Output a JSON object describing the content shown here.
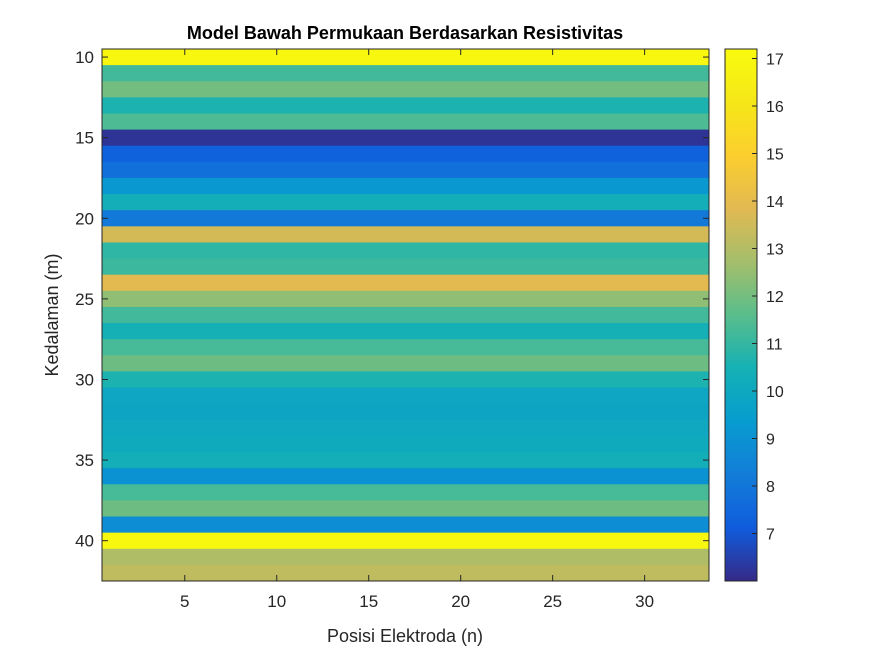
{
  "chart_data": {
    "type": "heatmap",
    "title": "Model Bawah Permukaan Berdasarkan Resistivitas",
    "xlabel": "Posisi Elektroda (n)",
    "ylabel": "Kedalaman (m)",
    "xlim": [
      0.5,
      33.5
    ],
    "ylim": [
      42.5,
      9.5
    ],
    "y_direction": "reversed",
    "xticks": [
      5,
      10,
      15,
      20,
      25,
      30
    ],
    "yticks": [
      10,
      15,
      20,
      25,
      30,
      35,
      40
    ],
    "colorbar": {
      "colormap": "parula",
      "clim": [
        6,
        17.2
      ],
      "ticks": [
        7,
        8,
        9,
        10,
        11,
        12,
        13,
        14,
        15,
        16,
        17
      ]
    },
    "note_cols": "values are constant across all electrode positions 1-33",
    "rows": [
      {
        "depth": 10,
        "value": 17.0
      },
      {
        "depth": 11,
        "value": 11.2
      },
      {
        "depth": 12,
        "value": 12.0
      },
      {
        "depth": 13,
        "value": 10.6
      },
      {
        "depth": 14,
        "value": 11.4
      },
      {
        "depth": 15,
        "value": 6.2
      },
      {
        "depth": 16,
        "value": 7.3
      },
      {
        "depth": 17,
        "value": 7.8
      },
      {
        "depth": 18,
        "value": 9.2
      },
      {
        "depth": 19,
        "value": 10.3
      },
      {
        "depth": 20,
        "value": 8.1
      },
      {
        "depth": 21,
        "value": 13.6
      },
      {
        "depth": 22,
        "value": 10.9
      },
      {
        "depth": 23,
        "value": 11.1
      },
      {
        "depth": 24,
        "value": 13.9
      },
      {
        "depth": 25,
        "value": 12.4
      },
      {
        "depth": 26,
        "value": 11.2
      },
      {
        "depth": 27,
        "value": 10.4
      },
      {
        "depth": 28,
        "value": 11.3
      },
      {
        "depth": 29,
        "value": 11.9
      },
      {
        "depth": 30,
        "value": 10.6
      },
      {
        "depth": 31,
        "value": 9.9
      },
      {
        "depth": 32,
        "value": 9.8
      },
      {
        "depth": 33,
        "value": 10.0
      },
      {
        "depth": 34,
        "value": 10.1
      },
      {
        "depth": 35,
        "value": 10.3
      },
      {
        "depth": 36,
        "value": 9.0
      },
      {
        "depth": 37,
        "value": 11.3
      },
      {
        "depth": 38,
        "value": 11.9
      },
      {
        "depth": 39,
        "value": 8.8
      },
      {
        "depth": 40,
        "value": 17.0
      },
      {
        "depth": 41,
        "value": 12.9
      },
      {
        "depth": 42,
        "value": 13.2
      }
    ]
  }
}
